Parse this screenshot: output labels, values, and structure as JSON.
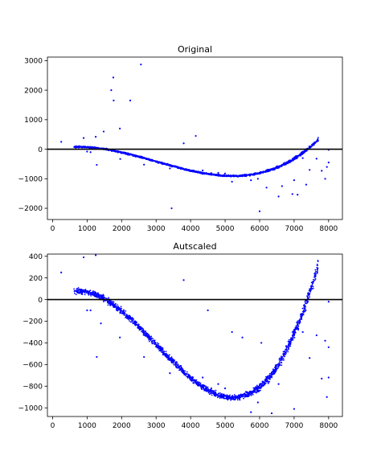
{
  "figure": {
    "background": "#ffffff",
    "point_color": "#0000ff",
    "zero_line_color": "#000000"
  },
  "chart_data": [
    {
      "type": "scatter",
      "title": "Original",
      "xlabel": "",
      "ylabel": "",
      "xlim": [
        -150,
        8400
      ],
      "ylim": [
        -2380,
        3120
      ],
      "xticks": [
        0,
        1000,
        2000,
        3000,
        4000,
        5000,
        6000,
        7000,
        8000
      ],
      "yticks": [
        -2000,
        -1000,
        0,
        1000,
        2000,
        3000
      ],
      "grid": false,
      "legend": "none",
      "horizontal_line": 0,
      "trend_polynomial": {
        "description": "scatter cloud follows y = 2.2e-8*x^3 - 0.0001976*x^2 + 0.2617*x - 16",
        "x_range": [
          620,
          7700
        ],
        "band_half_width": 40,
        "point_count": 1800
      },
      "outliers": [
        {
          "x": 250,
          "y": 250
        },
        {
          "x": 900,
          "y": 380
        },
        {
          "x": 1000,
          "y": -80
        },
        {
          "x": 1100,
          "y": -100
        },
        {
          "x": 1250,
          "y": 420
        },
        {
          "x": 1280,
          "y": -530
        },
        {
          "x": 1480,
          "y": 600
        },
        {
          "x": 1700,
          "y": 2000
        },
        {
          "x": 1760,
          "y": 2430
        },
        {
          "x": 1770,
          "y": 1650
        },
        {
          "x": 1950,
          "y": 700
        },
        {
          "x": 1960,
          "y": -330
        },
        {
          "x": 2250,
          "y": 1650
        },
        {
          "x": 2560,
          "y": 2870
        },
        {
          "x": 2650,
          "y": -520
        },
        {
          "x": 3230,
          "y": -480
        },
        {
          "x": 3400,
          "y": -650
        },
        {
          "x": 3450,
          "y": -2000
        },
        {
          "x": 3800,
          "y": 200
        },
        {
          "x": 4150,
          "y": 450
        },
        {
          "x": 4350,
          "y": -720
        },
        {
          "x": 4600,
          "y": -810
        },
        {
          "x": 4800,
          "y": -800
        },
        {
          "x": 5000,
          "y": -820
        },
        {
          "x": 5200,
          "y": -1100
        },
        {
          "x": 5600,
          "y": -870
        },
        {
          "x": 5750,
          "y": -1050
        },
        {
          "x": 5950,
          "y": -1000
        },
        {
          "x": 6000,
          "y": -2100
        },
        {
          "x": 6200,
          "y": -1300
        },
        {
          "x": 6550,
          "y": -1600
        },
        {
          "x": 6650,
          "y": -1250
        },
        {
          "x": 6950,
          "y": -1520
        },
        {
          "x": 7000,
          "y": -1050
        },
        {
          "x": 7100,
          "y": -1540
        },
        {
          "x": 7250,
          "y": -300
        },
        {
          "x": 7350,
          "y": -1200
        },
        {
          "x": 7450,
          "y": -700
        },
        {
          "x": 7650,
          "y": -320
        },
        {
          "x": 7800,
          "y": -730
        },
        {
          "x": 7900,
          "y": -1000
        },
        {
          "x": 7950,
          "y": -600
        },
        {
          "x": 8000,
          "y": -450
        },
        {
          "x": 8000,
          "y": -20
        }
      ]
    },
    {
      "type": "scatter",
      "title": "Autscaled",
      "xlabel": "",
      "ylabel": "",
      "xlim": [
        -150,
        8400
      ],
      "ylim": [
        -1080,
        420
      ],
      "xticks": [
        0,
        1000,
        2000,
        3000,
        4000,
        5000,
        6000,
        7000,
        8000
      ],
      "yticks": [
        -1000,
        -800,
        -600,
        -400,
        -200,
        0,
        200,
        400
      ],
      "grid": false,
      "legend": "none",
      "horizontal_line": 0,
      "trend_polynomial": {
        "description": "scatter cloud follows y = 2.2e-8*x^3 - 0.0001976*x^2 + 0.2617*x - 16",
        "x_range": [
          620,
          7700
        ],
        "band_half_width": 40,
        "point_count": 1800
      },
      "outliers": [
        {
          "x": 250,
          "y": 250
        },
        {
          "x": 900,
          "y": 390
        },
        {
          "x": 1000,
          "y": -100
        },
        {
          "x": 1100,
          "y": -100
        },
        {
          "x": 1250,
          "y": 410
        },
        {
          "x": 1280,
          "y": -530
        },
        {
          "x": 1400,
          "y": -220
        },
        {
          "x": 1950,
          "y": -350
        },
        {
          "x": 2650,
          "y": -530
        },
        {
          "x": 3230,
          "y": -480
        },
        {
          "x": 3400,
          "y": -680
        },
        {
          "x": 3800,
          "y": 180
        },
        {
          "x": 4350,
          "y": -720
        },
        {
          "x": 4500,
          "y": -100
        },
        {
          "x": 4600,
          "y": -820
        },
        {
          "x": 4800,
          "y": -780
        },
        {
          "x": 5000,
          "y": -820
        },
        {
          "x": 5200,
          "y": -300
        },
        {
          "x": 5500,
          "y": -350
        },
        {
          "x": 5700,
          "y": -870
        },
        {
          "x": 5750,
          "y": -1040
        },
        {
          "x": 5950,
          "y": -950
        },
        {
          "x": 6050,
          "y": -400
        },
        {
          "x": 6350,
          "y": -1050
        },
        {
          "x": 6550,
          "y": -780
        },
        {
          "x": 7000,
          "y": -1010
        },
        {
          "x": 7250,
          "y": -300
        },
        {
          "x": 7450,
          "y": -540
        },
        {
          "x": 7650,
          "y": -330
        },
        {
          "x": 7800,
          "y": -730
        },
        {
          "x": 7900,
          "y": -380
        },
        {
          "x": 7950,
          "y": -900
        },
        {
          "x": 8000,
          "y": -720
        },
        {
          "x": 8000,
          "y": -20
        },
        {
          "x": 8000,
          "y": -440
        }
      ]
    }
  ]
}
